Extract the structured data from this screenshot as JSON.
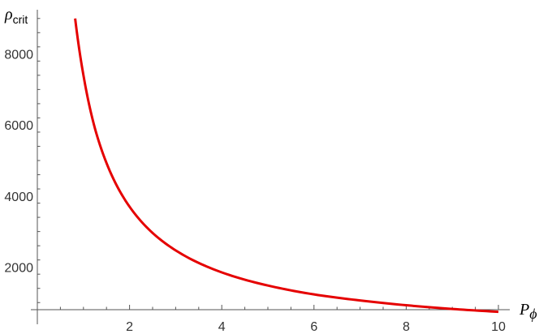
{
  "chart_data": {
    "type": "line",
    "title": "",
    "xlabel": "P",
    "xlabel_sub": "ϕ",
    "ylabel": "ρ",
    "ylabel_sub": "crit",
    "xlim": [
      0,
      10
    ],
    "ylim": [
      800,
      9200
    ],
    "x_ticks": [
      2,
      4,
      6,
      8,
      10
    ],
    "x_tick_labels": [
      "2",
      "4",
      "6",
      "8",
      "10"
    ],
    "y_ticks": [
      2000,
      4000,
      6000,
      8000
    ],
    "y_tick_labels": [
      "2000",
      "4000",
      "6000",
      "8000"
    ],
    "grid": false,
    "series": [
      {
        "color": "#e50000",
        "x": [
          0.82,
          1.0,
          1.25,
          1.5,
          2.0,
          2.5,
          3.0,
          4.0,
          5.0,
          6.0,
          7.0,
          8.0,
          9.0,
          10.0
        ],
        "y": [
          9000,
          7400,
          5900,
          4930,
          3700,
          2960,
          2470,
          1850,
          1480,
          1230,
          1060,
          925,
          820,
          740
        ]
      }
    ]
  }
}
